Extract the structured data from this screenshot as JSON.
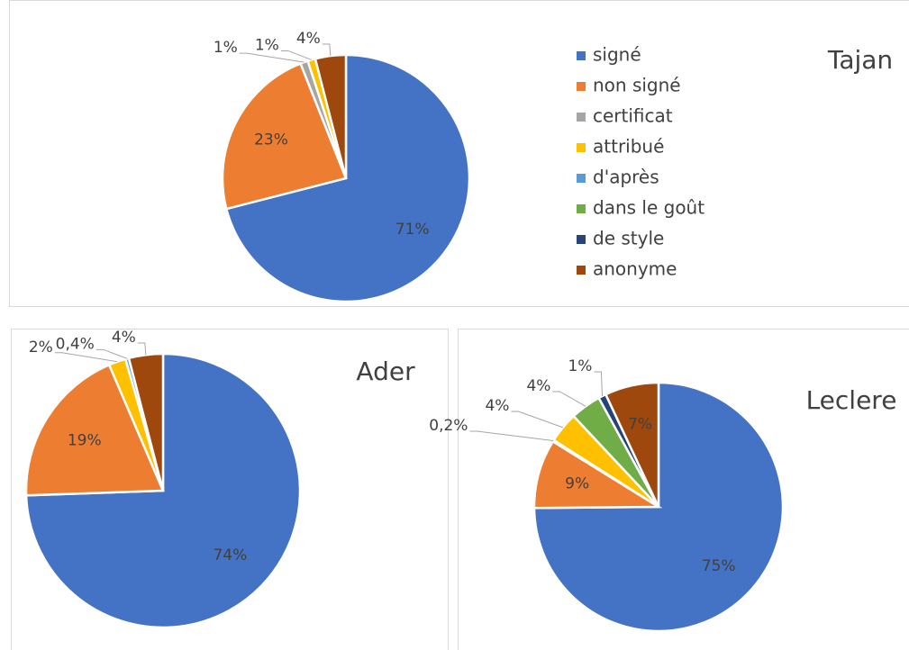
{
  "chart_data": [
    {
      "type": "pie",
      "title": "Tajan",
      "categories": [
        "signé",
        "non signé",
        "certificat",
        "attribué",
        "d'après",
        "dans le goût",
        "de style",
        "anonyme"
      ],
      "values": [
        71,
        23,
        1,
        1,
        0,
        0,
        0,
        4
      ],
      "value_labels": [
        "71%",
        "23%",
        "1%",
        "1%",
        null,
        null,
        null,
        "4%"
      ],
      "colors": [
        "#4472c4",
        "#ed7d31",
        "#a5a5a5",
        "#ffc000",
        "#5b9bd5",
        "#70ad47",
        "#264478",
        "#9e480e"
      ],
      "legend": "right"
    },
    {
      "type": "pie",
      "title": "Ader",
      "values": [
        74,
        19,
        0,
        2,
        0.4,
        0,
        0,
        4
      ],
      "value_labels": [
        "74%",
        "19%",
        null,
        "2%",
        "0,4%",
        null,
        null,
        "4%"
      ],
      "colors": [
        "#4472c4",
        "#ed7d31",
        "#a5a5a5",
        "#ffc000",
        "#5b9bd5",
        "#70ad47",
        "#264478",
        "#9e480e"
      ],
      "legend": false
    },
    {
      "type": "pie",
      "title": "Leclere",
      "values": [
        75,
        9,
        0.2,
        4,
        0,
        4,
        1,
        7
      ],
      "value_labels": [
        "75%",
        "9%",
        "0,2%",
        "4%",
        null,
        "4%",
        "1%",
        "7%"
      ],
      "colors": [
        "#4472c4",
        "#ed7d31",
        "#a5a5a5",
        "#ffc000",
        "#5b9bd5",
        "#70ad47",
        "#264478",
        "#9e480e"
      ],
      "legend": false
    }
  ]
}
